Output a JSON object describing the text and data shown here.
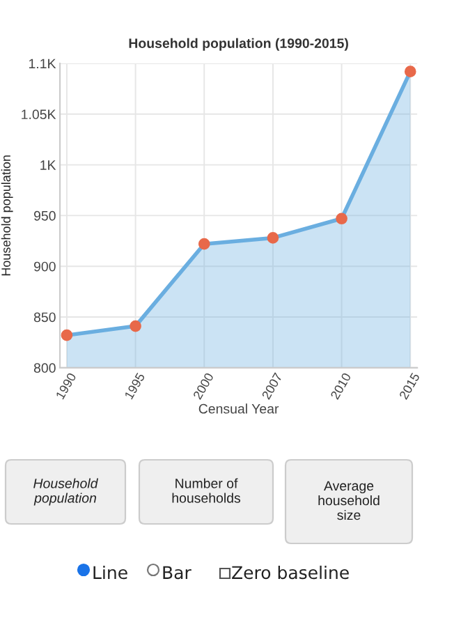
{
  "chart_data": [
    {
      "type": "area",
      "title": "Household population (1990-2015)",
      "xlabel": "Censual Year",
      "ylabel": "Household population",
      "categories": [
        "1990",
        "1995",
        "2000",
        "2007",
        "2010",
        "2015"
      ],
      "series": [
        {
          "color": "#6aaee0",
          "values": [
            832,
            841,
            922,
            928,
            947,
            1092
          ]
        }
      ],
      "marker": "circle",
      "ylim": [
        800,
        1100
      ],
      "yticks": [
        800,
        850,
        900,
        950,
        {
          "value": 1000,
          "label": "1K"
        },
        {
          "value": 1050,
          "label": "1.05K"
        },
        {
          "value": 1100,
          "label": "1.1K"
        }
      ],
      "grid": true
    },
    {
      "type": "other",
      "annotations": [
        "Household population",
        "Number of households",
        "Average household size",
        "Line",
        "Bar",
        "Zero baseline"
      ]
    }
  ]
}
